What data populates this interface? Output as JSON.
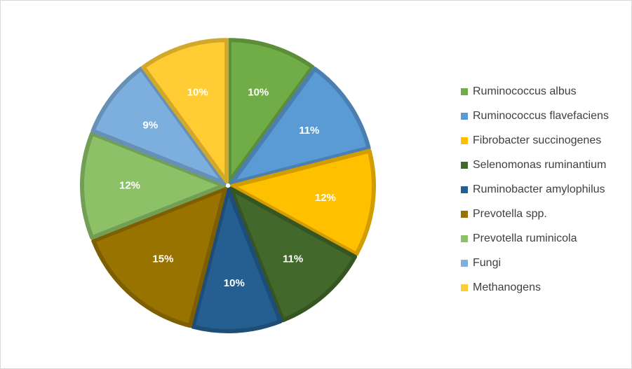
{
  "chart_data": {
    "type": "pie",
    "categories": [
      "Ruminococcus albus",
      "Ruminococcus flavefaciens",
      "Fibrobacter succinogenes",
      "Selenomonas ruminantium",
      "Ruminobacter amylophilus",
      "Prevotella spp.",
      "Prevotella ruminicola",
      "Fungi",
      "Methanogens"
    ],
    "values": [
      10,
      11,
      12,
      11,
      10,
      15,
      12,
      9,
      10
    ],
    "data_labels": [
      "10%",
      "11%",
      "12%",
      "11%",
      "10%",
      "15%",
      "12%",
      "9%",
      "10%"
    ],
    "colors": [
      "#70ad47",
      "#5b9bd5",
      "#ffc000",
      "#43682b",
      "#255e91",
      "#997300",
      "#8cc168",
      "#7cafdd",
      "#ffcd33"
    ],
    "legend_position": "right",
    "title": ""
  }
}
